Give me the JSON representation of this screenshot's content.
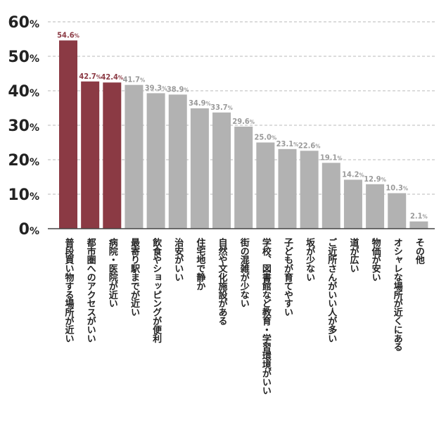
{
  "chart_data": {
    "type": "bar",
    "title": "",
    "xlabel": "",
    "ylabel": "",
    "ylim": [
      0,
      60
    ],
    "y_ticks": [
      {
        "value": 0,
        "num": "0",
        "unit": "%"
      },
      {
        "value": 10,
        "num": "10",
        "unit": "%"
      },
      {
        "value": 20,
        "num": "20",
        "unit": "%"
      },
      {
        "value": 30,
        "num": "30",
        "unit": "%"
      },
      {
        "value": 40,
        "num": "40",
        "unit": "%"
      },
      {
        "value": 50,
        "num": "50",
        "unit": "%"
      },
      {
        "value": 60,
        "num": "60",
        "unit": "%"
      }
    ],
    "grid": true,
    "categories": [
      "普段買い物する場所が近い",
      "都市圏へのアクセスがいい",
      "病院・医院が近い",
      "最寄り駅までが近い",
      "飲食やショッピングが便利",
      "治安がいい",
      "住宅地で静か",
      "自然や文化施設がある",
      "街の混雑が少ない",
      "学校、図書館など教育・学習環境がいい",
      "子どもが育てやすい",
      "坂が少ない",
      "ご近所さんがいい人が多い",
      "道が広い",
      "物価が安い",
      "オシャレな場所が近くにある",
      "その他"
    ],
    "values": [
      54.6,
      42.7,
      42.4,
      41.7,
      39.3,
      38.9,
      34.9,
      33.7,
      29.6,
      25.0,
      23.1,
      22.6,
      19.1,
      14.2,
      12.9,
      10.3,
      2.1
    ],
    "value_labels": [
      {
        "num": "54.6",
        "unit": "%"
      },
      {
        "num": "42.7",
        "unit": "%"
      },
      {
        "num": "42.4",
        "unit": "%"
      },
      {
        "num": "41.7",
        "unit": "%"
      },
      {
        "num": "39.3",
        "unit": "%"
      },
      {
        "num": "38.9",
        "unit": "%"
      },
      {
        "num": "34.9",
        "unit": "%"
      },
      {
        "num": "33.7",
        "unit": "%"
      },
      {
        "num": "29.6",
        "unit": "%"
      },
      {
        "num": "25.0",
        "unit": "%"
      },
      {
        "num": "23.1",
        "unit": "%"
      },
      {
        "num": "22.6",
        "unit": "%"
      },
      {
        "num": "19.1",
        "unit": "%"
      },
      {
        "num": "14.2",
        "unit": "%"
      },
      {
        "num": "12.9",
        "unit": "%"
      },
      {
        "num": "10.3",
        "unit": "%"
      },
      {
        "num": "2.1",
        "unit": "%"
      }
    ],
    "highlight_count": 3,
    "colors": {
      "highlight": "#8b3a44",
      "normal": "#b2b2b2",
      "highlight_label": "#8b3a44",
      "normal_label": "#9a9a9a",
      "grid": "#b8b8b8",
      "axis": "#444444"
    }
  }
}
